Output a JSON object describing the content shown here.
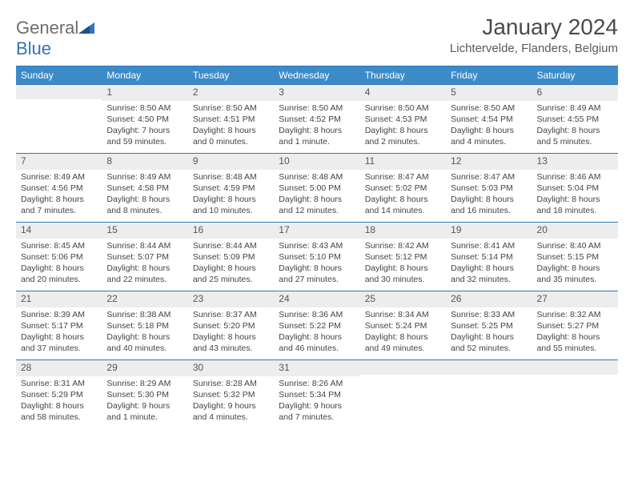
{
  "brand": {
    "general": "General",
    "blue": "Blue"
  },
  "header": {
    "month_title": "January 2024",
    "location": "Lichtervelde, Flanders, Belgium"
  },
  "style": {
    "header_bg": "#3b8bc9",
    "border_color": "#2f75bb",
    "daynum_bg": "#ededed",
    "text_color": "#444444"
  },
  "calendar": {
    "type": "table",
    "day_names": [
      "Sunday",
      "Monday",
      "Tuesday",
      "Wednesday",
      "Thursday",
      "Friday",
      "Saturday"
    ],
    "weeks": [
      [
        null,
        {
          "n": "1",
          "sunrise": "8:50 AM",
          "sunset": "4:50 PM",
          "daylight": "7 hours and 59 minutes."
        },
        {
          "n": "2",
          "sunrise": "8:50 AM",
          "sunset": "4:51 PM",
          "daylight": "8 hours and 0 minutes."
        },
        {
          "n": "3",
          "sunrise": "8:50 AM",
          "sunset": "4:52 PM",
          "daylight": "8 hours and 1 minute."
        },
        {
          "n": "4",
          "sunrise": "8:50 AM",
          "sunset": "4:53 PM",
          "daylight": "8 hours and 2 minutes."
        },
        {
          "n": "5",
          "sunrise": "8:50 AM",
          "sunset": "4:54 PM",
          "daylight": "8 hours and 4 minutes."
        },
        {
          "n": "6",
          "sunrise": "8:49 AM",
          "sunset": "4:55 PM",
          "daylight": "8 hours and 5 minutes."
        }
      ],
      [
        {
          "n": "7",
          "sunrise": "8:49 AM",
          "sunset": "4:56 PM",
          "daylight": "8 hours and 7 minutes."
        },
        {
          "n": "8",
          "sunrise": "8:49 AM",
          "sunset": "4:58 PM",
          "daylight": "8 hours and 8 minutes."
        },
        {
          "n": "9",
          "sunrise": "8:48 AM",
          "sunset": "4:59 PM",
          "daylight": "8 hours and 10 minutes."
        },
        {
          "n": "10",
          "sunrise": "8:48 AM",
          "sunset": "5:00 PM",
          "daylight": "8 hours and 12 minutes."
        },
        {
          "n": "11",
          "sunrise": "8:47 AM",
          "sunset": "5:02 PM",
          "daylight": "8 hours and 14 minutes."
        },
        {
          "n": "12",
          "sunrise": "8:47 AM",
          "sunset": "5:03 PM",
          "daylight": "8 hours and 16 minutes."
        },
        {
          "n": "13",
          "sunrise": "8:46 AM",
          "sunset": "5:04 PM",
          "daylight": "8 hours and 18 minutes."
        }
      ],
      [
        {
          "n": "14",
          "sunrise": "8:45 AM",
          "sunset": "5:06 PM",
          "daylight": "8 hours and 20 minutes."
        },
        {
          "n": "15",
          "sunrise": "8:44 AM",
          "sunset": "5:07 PM",
          "daylight": "8 hours and 22 minutes."
        },
        {
          "n": "16",
          "sunrise": "8:44 AM",
          "sunset": "5:09 PM",
          "daylight": "8 hours and 25 minutes."
        },
        {
          "n": "17",
          "sunrise": "8:43 AM",
          "sunset": "5:10 PM",
          "daylight": "8 hours and 27 minutes."
        },
        {
          "n": "18",
          "sunrise": "8:42 AM",
          "sunset": "5:12 PM",
          "daylight": "8 hours and 30 minutes."
        },
        {
          "n": "19",
          "sunrise": "8:41 AM",
          "sunset": "5:14 PM",
          "daylight": "8 hours and 32 minutes."
        },
        {
          "n": "20",
          "sunrise": "8:40 AM",
          "sunset": "5:15 PM",
          "daylight": "8 hours and 35 minutes."
        }
      ],
      [
        {
          "n": "21",
          "sunrise": "8:39 AM",
          "sunset": "5:17 PM",
          "daylight": "8 hours and 37 minutes."
        },
        {
          "n": "22",
          "sunrise": "8:38 AM",
          "sunset": "5:18 PM",
          "daylight": "8 hours and 40 minutes."
        },
        {
          "n": "23",
          "sunrise": "8:37 AM",
          "sunset": "5:20 PM",
          "daylight": "8 hours and 43 minutes."
        },
        {
          "n": "24",
          "sunrise": "8:36 AM",
          "sunset": "5:22 PM",
          "daylight": "8 hours and 46 minutes."
        },
        {
          "n": "25",
          "sunrise": "8:34 AM",
          "sunset": "5:24 PM",
          "daylight": "8 hours and 49 minutes."
        },
        {
          "n": "26",
          "sunrise": "8:33 AM",
          "sunset": "5:25 PM",
          "daylight": "8 hours and 52 minutes."
        },
        {
          "n": "27",
          "sunrise": "8:32 AM",
          "sunset": "5:27 PM",
          "daylight": "8 hours and 55 minutes."
        }
      ],
      [
        {
          "n": "28",
          "sunrise": "8:31 AM",
          "sunset": "5:29 PM",
          "daylight": "8 hours and 58 minutes."
        },
        {
          "n": "29",
          "sunrise": "8:29 AM",
          "sunset": "5:30 PM",
          "daylight": "9 hours and 1 minute."
        },
        {
          "n": "30",
          "sunrise": "8:28 AM",
          "sunset": "5:32 PM",
          "daylight": "9 hours and 4 minutes."
        },
        {
          "n": "31",
          "sunrise": "8:26 AM",
          "sunset": "5:34 PM",
          "daylight": "9 hours and 7 minutes."
        },
        null,
        null,
        null
      ]
    ],
    "labels": {
      "sunrise": "Sunrise:",
      "sunset": "Sunset:",
      "daylight": "Daylight:"
    }
  }
}
